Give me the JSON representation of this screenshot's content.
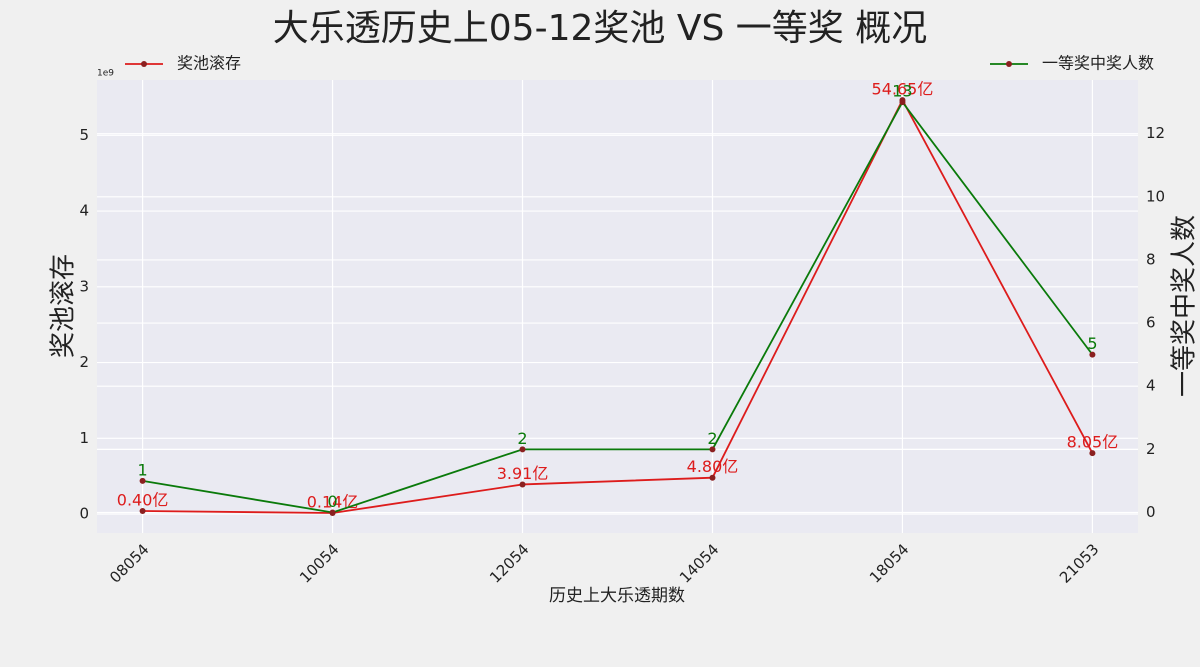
{
  "chart_data": {
    "type": "line",
    "title": "大乐透历史上05-12奖池 VS 一等奖 概况",
    "xlabel": "历史上大乐透期数",
    "ylabel": "奖池滚存",
    "y2label": "一等奖中奖人数",
    "y_offset_label": "1e9",
    "categories": [
      "08054",
      "10054",
      "12054",
      "14054",
      "18054",
      "21053"
    ],
    "series": [
      {
        "name": "奖池滚存",
        "color": "#dd1c1c",
        "marker_color": "#8b2020",
        "legend_loc": "upper left",
        "values": [
          0.04,
          0.014,
          0.391,
          0.48,
          5.465,
          0.805
        ],
        "value_labels": [
          "0.40亿",
          "0.14亿",
          "3.91亿",
          "4.80亿",
          "54.65亿",
          "8.05亿"
        ]
      },
      {
        "name": "一等奖中奖人数",
        "color": "#0a7a0a",
        "marker_color": "#8b2020",
        "legend_loc": "upper right",
        "axis": "y2",
        "values": [
          1,
          0,
          2,
          2,
          13,
          5
        ]
      }
    ],
    "ylim": [
      -0.25,
      5.73
    ],
    "yticks": [
      0,
      1,
      2,
      3,
      4,
      5
    ],
    "y2lim": [
      -0.65,
      13.7
    ],
    "y2ticks": [
      0,
      2,
      4,
      6,
      8,
      10,
      12
    ],
    "grid": true
  }
}
